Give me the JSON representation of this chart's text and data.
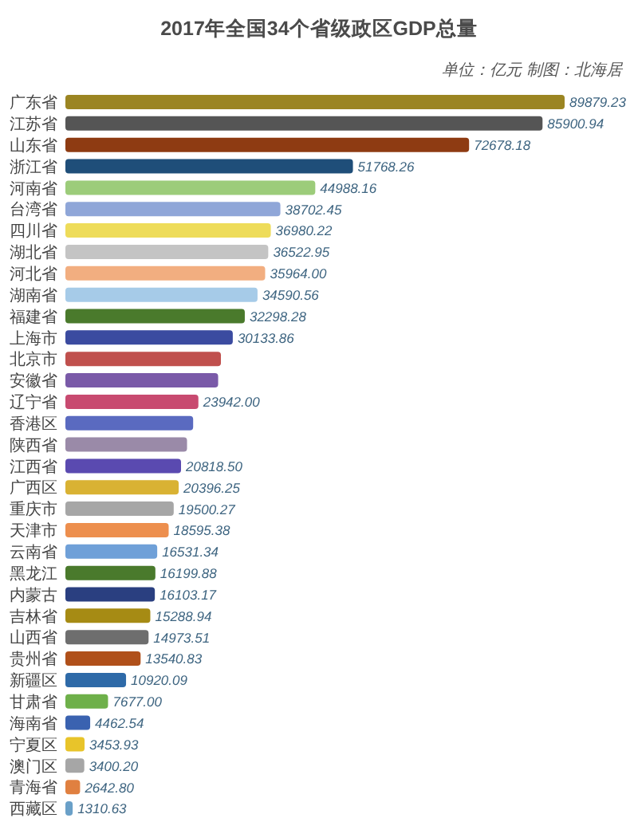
{
  "chart_data": {
    "type": "bar",
    "orientation": "horizontal",
    "title": "2017年全国34个省级政区GDP总量",
    "subtitle": "单位：亿元 制图：北海居",
    "categories": [
      "广东省",
      "江苏省",
      "山东省",
      "浙江省",
      "河南省",
      "台湾省",
      "四川省",
      "湖北省",
      "河北省",
      "湖南省",
      "福建省",
      "上海市",
      "北京市",
      "安徽省",
      "辽宁省",
      "香港区",
      "陕西省",
      "江西省",
      "广西区",
      "重庆市",
      "天津市",
      "云南省",
      "黑龙江",
      "内蒙古",
      "吉林省",
      "山西省",
      "贵州省",
      "新疆区",
      "甘肃省",
      "海南省",
      "宁夏区",
      "澳门区",
      "青海省",
      "西藏区"
    ],
    "values": [
      89879.23,
      85900.94,
      72678.18,
      51768.26,
      44988.16,
      38702.45,
      36980.22,
      36522.95,
      35964.0,
      34590.56,
      32298.28,
      30133.86,
      28000,
      27500,
      23942.0,
      23000,
      21900,
      20818.5,
      20396.25,
      19500.27,
      18595.38,
      16531.34,
      16199.88,
      16103.17,
      15288.94,
      14973.51,
      13540.83,
      10920.09,
      7677.0,
      4462.54,
      3453.93,
      3400.2,
      2642.8,
      1310.63
    ],
    "value_labels": [
      "89879.23",
      "85900.94",
      "72678.18",
      "51768.26",
      "44988.16",
      "38702.45",
      "36980.22",
      "36522.95",
      "35964.00",
      "34590.56",
      "32298.28",
      "30133.86",
      null,
      null,
      "23942.00",
      null,
      null,
      "20818.50",
      "20396.25",
      "19500.27",
      "18595.38",
      "16531.34",
      "16199.88",
      "16103.17",
      "15288.94",
      "14973.51",
      "13540.83",
      "10920.09",
      "7677.00",
      "4462.54",
      "3453.93",
      "3400.20",
      "2642.80",
      "1310.63"
    ],
    "colors": [
      "#9b8522",
      "#555555",
      "#8e3b12",
      "#1f4e79",
      "#9ccc7a",
      "#8fa6d8",
      "#eedc5a",
      "#c4c4c4",
      "#f2ae80",
      "#a6cbe8",
      "#4a7a2c",
      "#3b4ba0",
      "#c0504d",
      "#7a5aa8",
      "#c84a70",
      "#5a6ac0",
      "#9a8aa8",
      "#5a4ab0",
      "#d9b233",
      "#a6a6a6",
      "#ed8f4e",
      "#6fa0d8",
      "#4a7a2c",
      "#2a3f80",
      "#a68b14",
      "#6e6e6e",
      "#b0501a",
      "#2e6aa8",
      "#6eb04a",
      "#3a62b0",
      "#e8c42a",
      "#a6a6a6",
      "#e08040",
      "#6aa0c8"
    ]
  }
}
